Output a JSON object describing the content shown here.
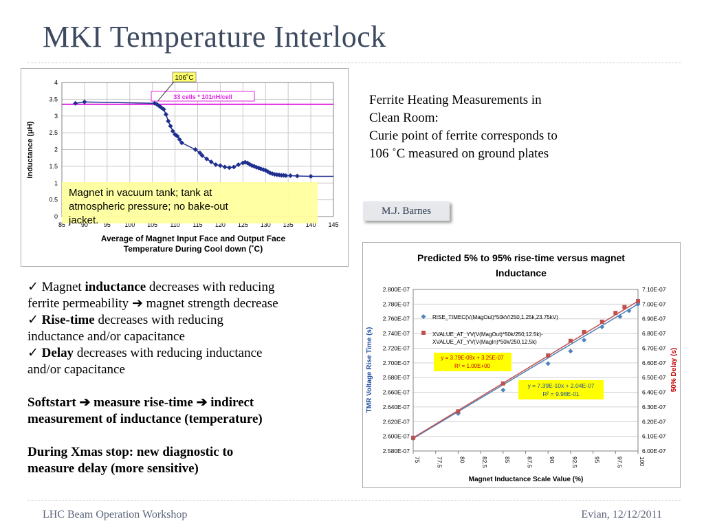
{
  "slide": {
    "title": "MKI Temperature Interlock",
    "right_text": [
      "Ferrite Heating Measurements in",
      "Clean Room:",
      "Curie point of ferrite corresponds to",
      "106 ˚C measured on ground plates"
    ],
    "author": "M.J. Barnes",
    "bullets": {
      "b1_pre": "Magnet ",
      "b1_bold": "inductance",
      "b1_post1": " decreases with reducing",
      "b1_post2": "ferrite permeability ",
      "b1_post3": " magnet strength decrease",
      "b2_bold": "Rise-time",
      "b2_post1": " decreases with reducing",
      "b2_post2": "inductance and/or capacitance",
      "b3_bold": "Delay",
      "b3_post1": " decreases with reducing inductance",
      "b3_post2": "and/or capacitance",
      "softstart_1": "Softstart ",
      "softstart_2": " measure rise-time ",
      "softstart_3": " indirect",
      "softstart_4": "measurement of inductance (temperature)",
      "xmas_1": "During Xmas stop: new diagnostic to",
      "xmas_2": "measure delay (more sensitive)"
    },
    "footer_left": "LHC Beam Operation Workshop",
    "footer_right": "Evian, 12/12/2011",
    "colors": {
      "title": "#3d4a60",
      "series_blue": "#1f2f8f",
      "magenta": "#e020e0",
      "right_blue": "#4f81bd",
      "right_red": "#c0504d"
    }
  },
  "chart_data": [
    {
      "type": "line",
      "title": "",
      "xlabel": "Average of Magnet Input Face and Output Face Temperature During Cool down (˚C)",
      "ylabel": "Inductance (μH)",
      "xlim": [
        85,
        145
      ],
      "ylim": [
        0,
        4
      ],
      "xticks": [
        "85",
        "90",
        "95",
        "100",
        "105",
        "110",
        "115",
        "120",
        "125",
        "130",
        "135",
        "140",
        "145"
      ],
      "yticks": [
        "0",
        "0.5",
        "1",
        "1.5",
        "2",
        "2.5",
        "3",
        "3.5",
        "4"
      ],
      "reference_line": {
        "y": 3.35,
        "label": "33 cells * 101nH/cell"
      },
      "callout": "106˚C",
      "note": "Magnet in vacuum tank; tank at atmospheric pressure; no bake-out jacket.",
      "series": [
        {
          "x": [
            88,
            90,
            105.5,
            106.0,
            106.5,
            107.0,
            107.5,
            108.0,
            108.5,
            109.0,
            109.5,
            110.0,
            110.5,
            111.0,
            111.5,
            114.5,
            115.5,
            116.0,
            117.0,
            118.0,
            119.0,
            120.0,
            121.0,
            122.0,
            123.0,
            124.0,
            125.0,
            125.5,
            126.0,
            126.5,
            127.0,
            127.5,
            128.0,
            128.5,
            129.0,
            129.5,
            130.0,
            130.5,
            131.0,
            131.5,
            132.0,
            132.5,
            133.0,
            133.5,
            134.0,
            134.5,
            135.5,
            137.0,
            140.0
          ],
          "values": [
            3.38,
            3.42,
            3.38,
            3.35,
            3.3,
            3.25,
            3.2,
            3.05,
            2.85,
            2.7,
            2.55,
            2.45,
            2.4,
            2.3,
            2.2,
            2.0,
            1.9,
            1.82,
            1.72,
            1.63,
            1.55,
            1.52,
            1.48,
            1.46,
            1.48,
            1.55,
            1.6,
            1.62,
            1.6,
            1.56,
            1.52,
            1.5,
            1.47,
            1.45,
            1.42,
            1.4,
            1.38,
            1.34,
            1.3,
            1.28,
            1.26,
            1.25,
            1.24,
            1.23,
            1.23,
            1.22,
            1.22,
            1.21,
            1.2
          ]
        }
      ]
    },
    {
      "type": "scatter",
      "title": "Predicted 5% to 95% rise-time versus magnet Inductance",
      "xlabel": "Magnet Inductance Scale Value (%)",
      "ylabel": "TMR Voltage Rise Time (s)",
      "y2label": "50% Delay (s)",
      "xlim": [
        75,
        100
      ],
      "ylim": [
        2.58e-07,
        2.8e-07
      ],
      "y2lim": [
        6e-07,
        7.1e-07
      ],
      "xticks": [
        "75",
        "77.5",
        "80",
        "82.5",
        "85",
        "87.5",
        "90",
        "92.5",
        "95",
        "97.5",
        "100"
      ],
      "yticks": [
        "2.580E-07",
        "2.600E-07",
        "2.620E-07",
        "2.640E-07",
        "2.660E-07",
        "2.680E-07",
        "2.700E-07",
        "2.720E-07",
        "2.740E-07",
        "2.760E-07",
        "2.780E-07",
        "2.800E-07"
      ],
      "y2ticks": [
        "6.00E-07",
        "6.10E-07",
        "6.20E-07",
        "6.30E-07",
        "6.40E-07",
        "6.50E-07",
        "6.60E-07",
        "6.70E-07",
        "6.80E-07",
        "6.90E-07",
        "7.00E-07",
        "7.10E-07"
      ],
      "series": [
        {
          "name": "RISE_TIMEC(V(MagOut)*50kV/250,1.25k,23.75kV)",
          "axis": "left",
          "color": "#4f81bd",
          "x": [
            75,
            80,
            85,
            90,
            92.5,
            94,
            96,
            98,
            99,
            100
          ],
          "values": [
            2.597e-07,
            2.631e-07,
            2.663e-07,
            2.699e-07,
            2.716e-07,
            2.731e-07,
            2.749e-07,
            2.763e-07,
            2.771e-07,
            2.78e-07
          ]
        },
        {
          "name": "XVALUE_AT_YV(V(MagOut)*50k/250,12.5k)-XVALUE_AT_YV(V(MagIn)*50k/250,12.5k)",
          "axis": "right",
          "color": "#c0504d",
          "x": [
            75,
            80,
            85,
            90,
            92.5,
            94,
            96,
            97.5,
            98.5,
            100
          ],
          "values": [
            6.09e-07,
            6.27e-07,
            6.46e-07,
            6.65e-07,
            6.75e-07,
            6.81e-07,
            6.88e-07,
            6.94e-07,
            6.98e-07,
            7.02e-07
          ]
        }
      ],
      "equations": [
        {
          "line1": "y = 3.79E-09x + 3.25E-07",
          "line2": "R² = 1.00E+00"
        },
        {
          "line1": "y = 7.39E-10x  + 2.04E-07",
          "line2": "R² = 9.98E-01"
        }
      ]
    }
  ]
}
